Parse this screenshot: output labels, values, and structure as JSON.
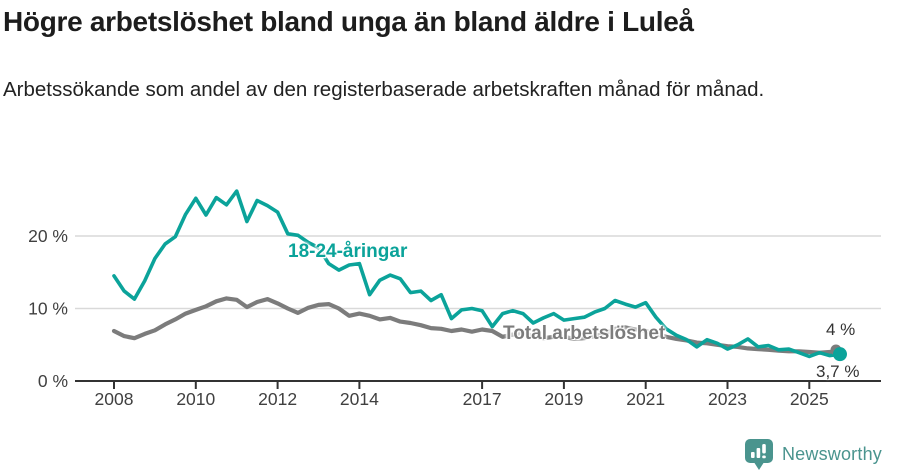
{
  "header": {
    "title": "Högre arbetslöshet bland unga än bland äldre i Luleå",
    "subtitle": "Arbetssökande som andel av den registerbaserade arbetskraften månad för månad."
  },
  "colors": {
    "accent_teal": "#0ba39a",
    "series_gray": "#7c7c7c",
    "brand_teal": "#4a948e",
    "axis": "#333333",
    "gridline": "#d9d9d9",
    "tick_label": "#404040",
    "end_label": "#333333"
  },
  "chart_data": {
    "type": "line",
    "title": "Högre arbetslöshet bland unga än bland äldre i Luleå",
    "xlabel": "",
    "ylabel": "Arbetssökande som andel av den registerbaserade arbetskraften",
    "x_unit": "decimal_year_quarterly",
    "x_start": 2008.0,
    "x_step": 0.25,
    "xlim": [
      2008.0,
      2025.75
    ],
    "ylim": [
      0,
      28
    ],
    "grid": "horizontal",
    "legend_position": "inline-labels",
    "x_ticks": [
      "2008",
      "2010",
      "2012",
      "2014",
      "2017",
      "2019",
      "2021",
      "2023",
      "2025"
    ],
    "x_tick_years": [
      2008,
      2010,
      2012,
      2014,
      2017,
      2019,
      2021,
      2023,
      2025
    ],
    "y_ticks": [
      {
        "value": 0,
        "label": "0 %"
      },
      {
        "value": 10,
        "label": "10 %"
      },
      {
        "value": 20,
        "label": "20 %"
      }
    ],
    "series": [
      {
        "name": "Total arbetslöshet",
        "color": "#7c7c7c",
        "end_label": "4 %",
        "end_value": 4.0,
        "values": [
          6.9,
          6.2,
          5.9,
          6.5,
          7.0,
          7.8,
          8.5,
          9.3,
          9.8,
          10.3,
          11.0,
          11.4,
          11.2,
          10.2,
          10.9,
          11.3,
          10.7,
          10.0,
          9.4,
          10.1,
          10.5,
          10.6,
          10.0,
          9.0,
          9.3,
          9.0,
          8.5,
          8.7,
          8.2,
          8.0,
          7.7,
          7.3,
          7.2,
          6.9,
          7.1,
          6.8,
          7.1,
          6.9,
          6.1,
          6.4,
          6.6,
          6.2,
          5.9,
          6.1,
          6.1,
          5.8,
          5.9,
          6.2,
          6.5,
          7.2,
          7.4,
          7.1,
          6.9,
          6.5,
          6.1,
          5.8,
          5.6,
          5.3,
          5.2,
          5.0,
          4.8,
          4.7,
          4.5,
          4.4,
          4.3,
          4.2,
          4.1,
          4.1,
          4.0,
          3.9,
          4.0,
          4.0
        ]
      },
      {
        "name": "18-24-åringar",
        "color": "#0ba39a",
        "end_label": "3,7 %",
        "end_value": 3.7,
        "values": [
          14.5,
          12.4,
          11.3,
          13.8,
          16.9,
          18.9,
          19.9,
          23.0,
          25.2,
          22.9,
          25.3,
          24.3,
          26.2,
          22.0,
          24.9,
          24.2,
          23.3,
          20.3,
          20.1,
          19.1,
          18.4,
          16.2,
          15.3,
          16.0,
          16.2,
          11.9,
          13.9,
          14.6,
          14.1,
          12.2,
          12.4,
          11.1,
          11.9,
          8.6,
          9.8,
          10.0,
          9.7,
          7.5,
          9.3,
          9.7,
          9.3,
          8.0,
          8.7,
          9.3,
          8.4,
          8.6,
          8.8,
          9.5,
          10.0,
          11.1,
          10.6,
          10.2,
          10.8,
          8.8,
          7.2,
          6.3,
          5.7,
          4.7,
          5.7,
          5.2,
          4.4,
          5.0,
          5.8,
          4.7,
          4.9,
          4.3,
          4.4,
          3.9,
          3.4,
          3.9,
          3.5,
          3.7
        ]
      }
    ]
  },
  "annotations": {
    "youth_label": "18-24-åringar",
    "total_label": "Total arbetslöshet",
    "end_label_total": "4 %",
    "end_label_youth": "3,7 %"
  },
  "footer": {
    "brand": "Newsworthy"
  }
}
